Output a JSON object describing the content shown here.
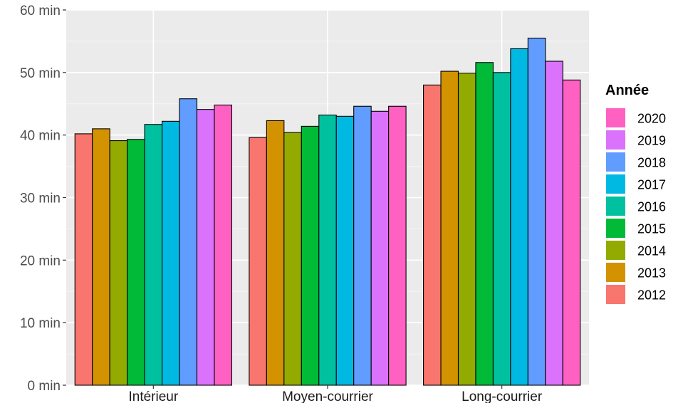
{
  "chart_data": {
    "type": "bar",
    "categories": [
      "Intérieur",
      "Moyen-courrier",
      "Long-courrier"
    ],
    "series": [
      {
        "name": "2012",
        "color": "#F8766D",
        "values": [
          40.2,
          39.6,
          48.0
        ]
      },
      {
        "name": "2013",
        "color": "#D39200",
        "values": [
          41.0,
          42.3,
          50.2
        ]
      },
      {
        "name": "2014",
        "color": "#93AA00",
        "values": [
          39.1,
          40.4,
          49.9
        ]
      },
      {
        "name": "2015",
        "color": "#00BA38",
        "values": [
          39.3,
          41.4,
          51.6
        ]
      },
      {
        "name": "2016",
        "color": "#00C19F",
        "values": [
          41.7,
          43.2,
          50.0
        ]
      },
      {
        "name": "2017",
        "color": "#00B9E3",
        "values": [
          42.2,
          43.0,
          53.8
        ]
      },
      {
        "name": "2018",
        "color": "#619CFF",
        "values": [
          45.8,
          44.6,
          55.5
        ]
      },
      {
        "name": "2019",
        "color": "#DB72FB",
        "values": [
          44.1,
          43.8,
          51.8
        ]
      },
      {
        "name": "2020",
        "color": "#FF61C3",
        "values": [
          44.8,
          44.6,
          48.8
        ]
      }
    ],
    "yticks": [
      "0 min",
      "10 min",
      "20 min",
      "30 min",
      "40 min",
      "50 min",
      "60 min"
    ],
    "ylim": [
      0,
      60
    ],
    "legend": {
      "title": "Année",
      "position": "right",
      "order": [
        "2020",
        "2019",
        "2018",
        "2017",
        "2016",
        "2015",
        "2014",
        "2013",
        "2012"
      ]
    },
    "grid": true,
    "panel_background": "#EBEBEB"
  }
}
